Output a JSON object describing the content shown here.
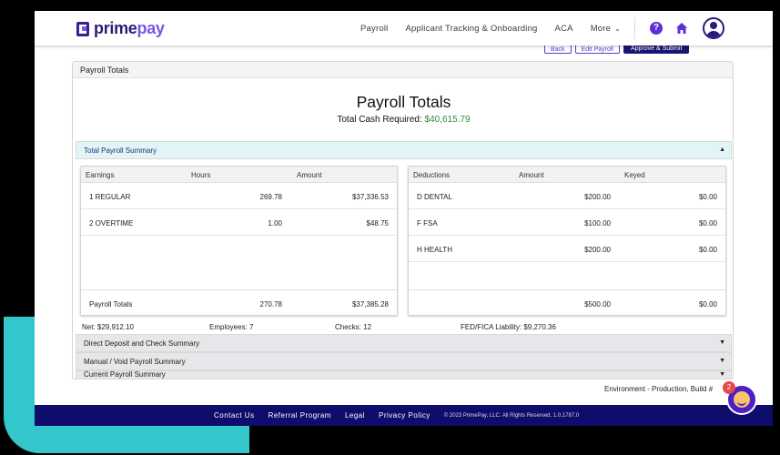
{
  "header": {
    "logo_prime": "prime",
    "logo_pay": "pay",
    "nav": [
      "Payroll",
      "Applicant Tracking & Onboarding",
      "ACA",
      "More"
    ],
    "help_label": "?"
  },
  "actions": {
    "back": "Back",
    "edit": "Edit Payroll",
    "approve": "Approve & Submit"
  },
  "card": {
    "header": "Payroll Totals",
    "title": "Payroll Totals",
    "cash_label": "Total Cash Required: ",
    "cash_value": "$40,615.79"
  },
  "accordion": {
    "open": "Total Payroll Summary",
    "closed": [
      "Direct Deposit and Check Summary",
      "Manual / Void Payroll Summary",
      "Current Payroll Summary"
    ]
  },
  "earnings": {
    "headers": [
      "Earnings",
      "Hours",
      "Amount"
    ],
    "rows": [
      {
        "name": "1 REGULAR",
        "hours": "269.78",
        "amount": "$37,336.53"
      },
      {
        "name": "2 OVERTIME",
        "hours": "1.00",
        "amount": "$48.75"
      }
    ],
    "totals": {
      "label": "Payroll Totals",
      "hours": "270.78",
      "amount": "$37,385.28"
    }
  },
  "deductions": {
    "headers": [
      "Deductions",
      "Amount",
      "Keyed"
    ],
    "rows": [
      {
        "name": "D DENTAL",
        "amount": "$200.00",
        "keyed": "$0.00"
      },
      {
        "name": "F FSA",
        "amount": "$100.00",
        "keyed": "$0.00"
      },
      {
        "name": "H HEALTH",
        "amount": "$200.00",
        "keyed": "$0.00"
      }
    ],
    "totals": {
      "amount": "$500.00",
      "keyed": "$0.00"
    }
  },
  "summary": {
    "net": "Net: $29,912.10",
    "employees": "Employees: 7",
    "checks": "Checks: 12",
    "liability": "FED/FICA Liability: $9,270.36"
  },
  "env": "Environment - Production,   Build #",
  "footer": {
    "links": [
      "Contact Us",
      "Referral Program",
      "Legal",
      "Privacy Policy"
    ],
    "copyright": "© 2023 PrimePay, LLC. All Rights Reserved.   1.0.1787.0"
  },
  "chat": {
    "badge": "2"
  },
  "colors": {
    "brand_dark": "#2d1a78",
    "brand_light": "#7a56e8",
    "footer": "#0f0d6b",
    "accent_teal": "#33c7cb",
    "cash_green": "#2e8b3e"
  }
}
